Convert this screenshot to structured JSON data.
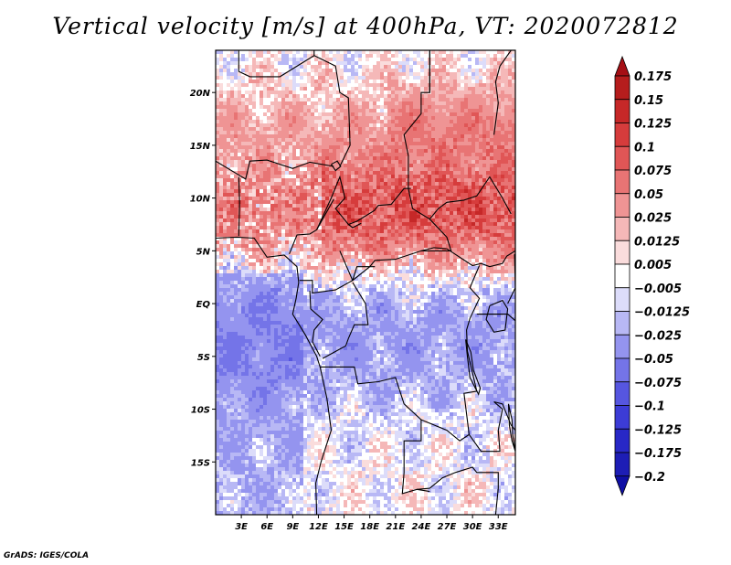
{
  "title": "Vertical velocity [m/s] at 400hPa, VT: 2020072812",
  "credit": "GrADS: IGES/COLA",
  "map": {
    "lon_ticks": [
      "3E",
      "6E",
      "9E",
      "12E",
      "15E",
      "18E",
      "21E",
      "24E",
      "27E",
      "30E",
      "33E"
    ],
    "lat_ticks": [
      "20N",
      "15N",
      "10N",
      "5N",
      "EQ",
      "5S",
      "10S",
      "15S"
    ]
  },
  "colorbar": {
    "labels": [
      "0.175",
      "0.15",
      "0.125",
      "0.1",
      "0.075",
      "0.05",
      "0.025",
      "0.0125",
      "0.005",
      "−0.005",
      "−0.0125",
      "−0.025",
      "−0.05",
      "−0.075",
      "−0.1",
      "−0.125",
      "−0.175",
      "−0.2"
    ],
    "colors": [
      "#a50f15",
      "#b51d1d",
      "#c62828",
      "#d63c3c",
      "#e05656",
      "#e87474",
      "#ef9494",
      "#f5b8b8",
      "#fadcdc",
      "#ffffff",
      "#dcdcfa",
      "#b8b8f5",
      "#9494ef",
      "#7474e8",
      "#5656e0",
      "#3c3cd6",
      "#2828c6",
      "#1d1db5",
      "#0f0fa5"
    ]
  },
  "chart_data": {
    "type": "heatmap",
    "title": "Vertical velocity [m/s] at 400hPa, VT: 2020072812",
    "xlabel": "",
    "ylabel": "",
    "xlim": [
      0,
      35
    ],
    "ylim": [
      -20,
      24
    ],
    "x_ticks": [
      "3E",
      "6E",
      "9E",
      "12E",
      "15E",
      "18E",
      "21E",
      "24E",
      "27E",
      "30E",
      "33E"
    ],
    "y_ticks": [
      "20N",
      "15N",
      "10N",
      "5N",
      "EQ",
      "5S",
      "10S",
      "15S"
    ],
    "color_levels": [
      -0.2,
      -0.175,
      -0.125,
      -0.1,
      -0.075,
      -0.05,
      -0.025,
      -0.0125,
      -0.005,
      0.005,
      0.0125,
      0.025,
      0.05,
      0.075,
      0.1,
      0.125,
      0.15,
      0.175
    ]
  }
}
